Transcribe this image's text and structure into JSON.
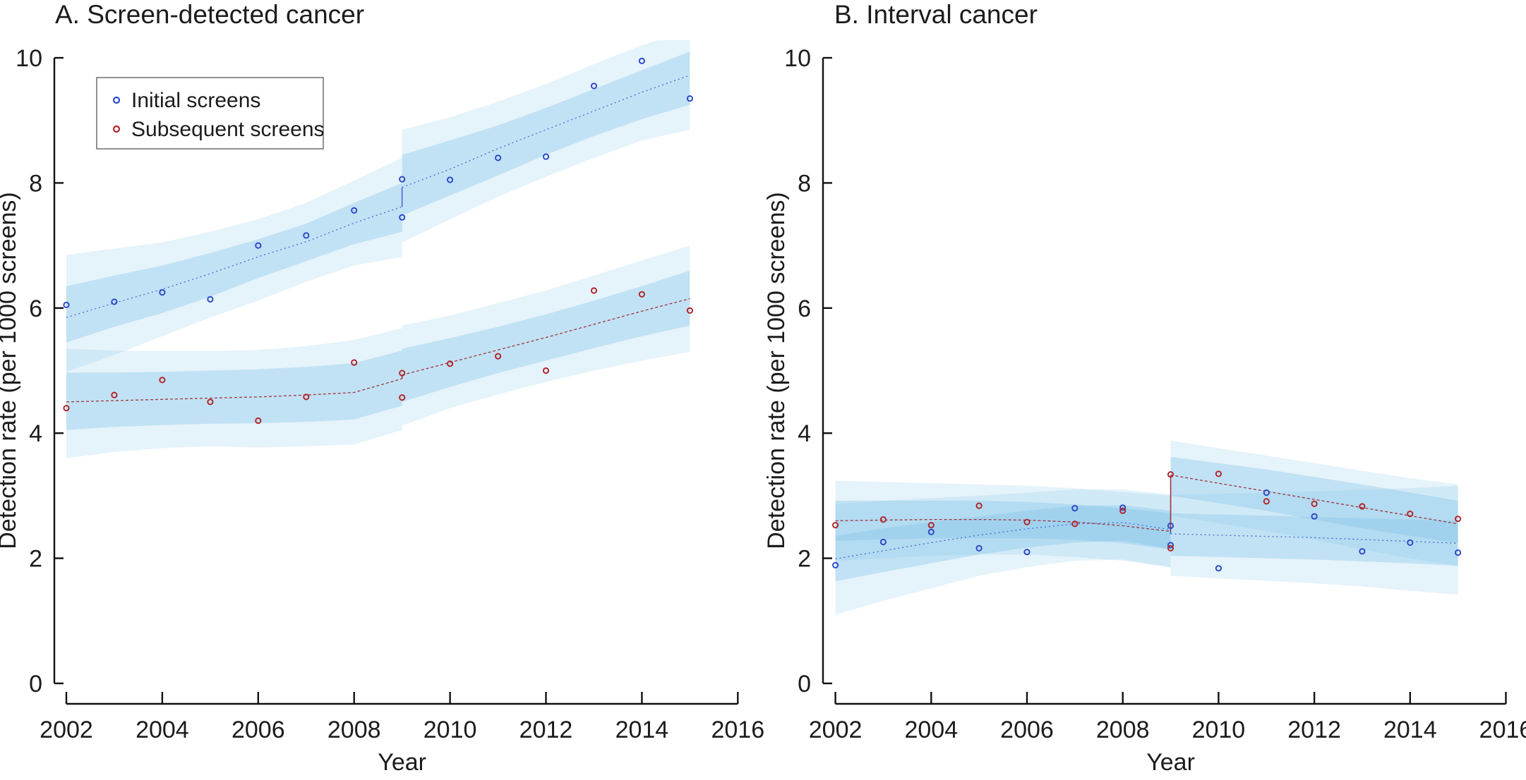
{
  "figure": {
    "background": "#ffffff",
    "style": {
      "band_color": "#7fc3e8",
      "outer_alpha": 0.2,
      "inner_alpha": 0.35,
      "axis_color": "#111111",
      "text_color": "#1c1c1c",
      "legend_border": "#777777",
      "blue_marker": "#2f4bc9",
      "blue_line": "#4a67d6",
      "red_marker": "#b2282e",
      "red_line": "#a03540"
    }
  },
  "chart_data": [
    {
      "type": "scatter",
      "title": "A. Screen-detected cancer",
      "xlabel": "Year",
      "ylabel": "Detection rate (per 1000 screens)",
      "xlim": [
        2002,
        2016
      ],
      "ylim": [
        0,
        10
      ],
      "xticks": [
        2002,
        2004,
        2006,
        2008,
        2010,
        2012,
        2014,
        2016
      ],
      "xtick_labels": [
        "2002",
        "2004",
        "2006",
        "2008",
        "2010",
        "2012",
        "2014",
        "2016"
      ],
      "yticks": [
        0,
        2,
        4,
        6,
        8,
        10
      ],
      "ytick_labels": [
        "0",
        "2",
        "4",
        "6",
        "8",
        "10"
      ],
      "grid": false,
      "legend": {
        "position": "top-left",
        "items": [
          {
            "label": "Initial screens",
            "color": "#2f4bc9"
          },
          {
            "label": "Subsequent screens",
            "color": "#b2282e"
          }
        ]
      },
      "series": [
        {
          "name": "Initial screens",
          "marker_color": "#2f4bc9",
          "line_color": "#4a67d6",
          "line_dash": "2 4",
          "points": {
            "x": [
              2002,
              2003,
              2004,
              2005,
              2006,
              2007,
              2008,
              2009,
              2009,
              2010,
              2011,
              2012,
              2013,
              2014,
              2015
            ],
            "y": [
              6.05,
              6.1,
              6.25,
              6.14,
              7.0,
              7.16,
              7.56,
              8.06,
              7.45,
              8.05,
              8.4,
              8.42,
              9.55,
              9.95,
              9.35
            ]
          },
          "segments": [
            {
              "x": [
                2002,
                2003,
                2004,
                2005,
                2006,
                2007,
                2008,
                2009
              ],
              "trend": [
                5.85,
                6.08,
                6.3,
                6.55,
                6.82,
                7.06,
                7.36,
                7.62
              ],
              "inner_upper": [
                6.35,
                6.52,
                6.68,
                6.88,
                7.1,
                7.35,
                7.68,
                8.0
              ],
              "inner_lower": [
                5.45,
                5.7,
                5.92,
                6.18,
                6.48,
                6.75,
                7.02,
                7.22
              ],
              "outer_upper": [
                6.85,
                6.95,
                7.05,
                7.22,
                7.42,
                7.68,
                8.04,
                8.4
              ],
              "outer_lower": [
                4.98,
                5.25,
                5.55,
                5.85,
                6.12,
                6.42,
                6.68,
                6.82
              ]
            },
            {
              "x": [
                2009,
                2010,
                2011,
                2012,
                2013,
                2014,
                2015
              ],
              "trend": [
                7.93,
                8.22,
                8.55,
                8.85,
                9.15,
                9.45,
                9.72
              ],
              "inner_upper": [
                8.45,
                8.68,
                8.92,
                9.2,
                9.5,
                9.8,
                10.1
              ],
              "inner_lower": [
                7.48,
                7.8,
                8.12,
                8.45,
                8.75,
                9.02,
                9.25
              ],
              "outer_upper": [
                8.85,
                9.05,
                9.3,
                9.58,
                9.9,
                10.2,
                10.45
              ],
              "outer_lower": [
                7.05,
                7.42,
                7.78,
                8.1,
                8.4,
                8.68,
                8.85
              ]
            }
          ],
          "jump": {
            "x": 2009,
            "from": 7.62,
            "to": 7.93
          }
        },
        {
          "name": "Subsequent screens",
          "marker_color": "#b2282e",
          "line_color": "#a03540",
          "line_dash": "4 3",
          "points": {
            "x": [
              2002,
              2003,
              2004,
              2005,
              2006,
              2007,
              2008,
              2009,
              2009,
              2010,
              2011,
              2012,
              2013,
              2014,
              2015
            ],
            "y": [
              4.4,
              4.61,
              4.85,
              4.5,
              4.2,
              4.58,
              5.13,
              4.96,
              4.57,
              5.11,
              5.23,
              5.0,
              6.28,
              6.22,
              5.96
            ]
          },
          "segments": [
            {
              "x": [
                2002,
                2003,
                2004,
                2005,
                2006,
                2007,
                2008,
                2009
              ],
              "trend": [
                4.5,
                4.52,
                4.54,
                4.56,
                4.58,
                4.61,
                4.65,
                4.87
              ],
              "inner_upper": [
                4.97,
                4.97,
                4.98,
                5.0,
                5.02,
                5.06,
                5.12,
                5.32
              ],
              "inner_lower": [
                4.05,
                4.1,
                4.13,
                4.15,
                4.16,
                4.18,
                4.22,
                4.44
              ],
              "outer_upper": [
                5.35,
                5.32,
                5.31,
                5.31,
                5.33,
                5.39,
                5.49,
                5.68
              ],
              "outer_lower": [
                3.6,
                3.7,
                3.76,
                3.79,
                3.77,
                3.79,
                3.82,
                4.05
              ]
            },
            {
              "x": [
                2009,
                2010,
                2011,
                2012,
                2013,
                2014,
                2015
              ],
              "trend": [
                4.93,
                5.13,
                5.33,
                5.53,
                5.74,
                5.95,
                6.15
              ],
              "inner_upper": [
                5.35,
                5.52,
                5.7,
                5.9,
                6.12,
                6.35,
                6.6
              ],
              "inner_lower": [
                4.5,
                4.74,
                4.96,
                5.16,
                5.36,
                5.55,
                5.72
              ],
              "outer_upper": [
                5.72,
                5.88,
                6.08,
                6.28,
                6.52,
                6.76,
                7.0
              ],
              "outer_lower": [
                4.12,
                4.4,
                4.62,
                4.82,
                5.0,
                5.16,
                5.3
              ]
            }
          ],
          "jump": {
            "x": 2009,
            "from": 4.87,
            "to": 4.93
          }
        }
      ]
    },
    {
      "type": "scatter",
      "title": "B. Interval cancer",
      "xlabel": "Year",
      "ylabel": "Detection rate (per 1000 screens)",
      "xlim": [
        2002,
        2016
      ],
      "ylim": [
        0,
        10
      ],
      "xticks": [
        2002,
        2004,
        2006,
        2008,
        2010,
        2012,
        2014,
        2016
      ],
      "xtick_labels": [
        "2002",
        "2004",
        "2006",
        "2008",
        "2010",
        "2012",
        "2014",
        "2016"
      ],
      "yticks": [
        0,
        2,
        4,
        6,
        8,
        10
      ],
      "ytick_labels": [
        "0",
        "2",
        "4",
        "6",
        "8",
        "10"
      ],
      "grid": false,
      "legend": null,
      "series": [
        {
          "name": "Initial screens",
          "marker_color": "#2f4bc9",
          "line_color": "#4a67d6",
          "line_dash": "2 4",
          "points": {
            "x": [
              2002,
              2003,
              2004,
              2005,
              2006,
              2007,
              2008,
              2009,
              2009,
              2010,
              2011,
              2012,
              2013,
              2014,
              2015
            ],
            "y": [
              1.89,
              2.26,
              2.42,
              2.16,
              2.1,
              2.8,
              2.81,
              2.52,
              2.21,
              1.84,
              3.05,
              2.67,
              2.11,
              2.25,
              2.09
            ]
          },
          "segments": [
            {
              "x": [
                2002,
                2003,
                2004,
                2005,
                2006,
                2007,
                2008,
                2009
              ],
              "trend": [
                1.99,
                2.12,
                2.25,
                2.37,
                2.47,
                2.55,
                2.57,
                2.46
              ],
              "inner_upper": [
                2.36,
                2.48,
                2.58,
                2.67,
                2.76,
                2.84,
                2.85,
                2.76
              ],
              "inner_lower": [
                1.63,
                1.78,
                1.92,
                2.06,
                2.17,
                2.25,
                2.28,
                2.15
              ],
              "outer_upper": [
                2.86,
                2.92,
                2.96,
                3.0,
                3.05,
                3.1,
                3.1,
                3.02
              ],
              "outer_lower": [
                1.1,
                1.32,
                1.52,
                1.72,
                1.86,
                1.96,
                1.98,
                1.85
              ]
            },
            {
              "x": [
                2009,
                2010,
                2011,
                2012,
                2013,
                2014,
                2015
              ],
              "trend": [
                2.39,
                2.37,
                2.35,
                2.33,
                2.3,
                2.27,
                2.24
              ],
              "inner_upper": [
                2.72,
                2.7,
                2.68,
                2.66,
                2.64,
                2.62,
                2.6
              ],
              "inner_lower": [
                2.04,
                2.02,
                2.0,
                1.98,
                1.95,
                1.92,
                1.88
              ],
              "outer_upper": [
                3.02,
                3.03,
                3.05,
                3.07,
                3.09,
                3.12,
                3.16
              ],
              "outer_lower": [
                1.72,
                1.68,
                1.64,
                1.6,
                1.55,
                1.48,
                1.42
              ]
            }
          ],
          "jump": {
            "x": 2009,
            "from": 2.46,
            "to": 2.39
          }
        },
        {
          "name": "Subsequent screens",
          "marker_color": "#b2282e",
          "line_color": "#a03540",
          "line_dash": "4 3",
          "points": {
            "x": [
              2002,
              2003,
              2004,
              2005,
              2006,
              2007,
              2008,
              2009,
              2009,
              2010,
              2011,
              2012,
              2013,
              2014,
              2015
            ],
            "y": [
              2.53,
              2.62,
              2.53,
              2.84,
              2.58,
              2.55,
              2.76,
              3.34,
              2.16,
              3.35,
              2.91,
              2.87,
              2.83,
              2.71,
              2.63
            ]
          },
          "segments": [
            {
              "x": [
                2002,
                2003,
                2004,
                2005,
                2006,
                2007,
                2008,
                2009
              ],
              "trend": [
                2.6,
                2.61,
                2.62,
                2.62,
                2.61,
                2.58,
                2.52,
                2.43
              ],
              "inner_upper": [
                2.92,
                2.92,
                2.92,
                2.92,
                2.9,
                2.86,
                2.8,
                2.72
              ],
              "inner_lower": [
                2.28,
                2.3,
                2.32,
                2.32,
                2.32,
                2.3,
                2.24,
                2.14
              ],
              "outer_upper": [
                3.24,
                3.22,
                3.2,
                3.18,
                3.16,
                3.12,
                3.06,
                3.0
              ],
              "outer_lower": [
                1.96,
                2.0,
                2.04,
                2.06,
                2.06,
                2.02,
                1.96,
                1.86
              ]
            },
            {
              "x": [
                2009,
                2010,
                2011,
                2012,
                2013,
                2014,
                2015
              ],
              "trend": [
                3.33,
                3.2,
                3.07,
                2.94,
                2.81,
                2.68,
                2.55
              ],
              "inner_upper": [
                3.62,
                3.52,
                3.42,
                3.3,
                3.18,
                3.05,
                2.92
              ],
              "inner_lower": [
                3.0,
                2.88,
                2.76,
                2.62,
                2.48,
                2.36,
                2.24
              ],
              "outer_upper": [
                3.88,
                3.76,
                3.64,
                3.52,
                3.4,
                3.28,
                3.18
              ],
              "outer_lower": [
                2.68,
                2.56,
                2.44,
                2.3,
                2.14,
                2.0,
                1.88
              ]
            }
          ],
          "jump": {
            "x": 2009,
            "from": 2.43,
            "to": 3.33
          }
        }
      ]
    }
  ]
}
